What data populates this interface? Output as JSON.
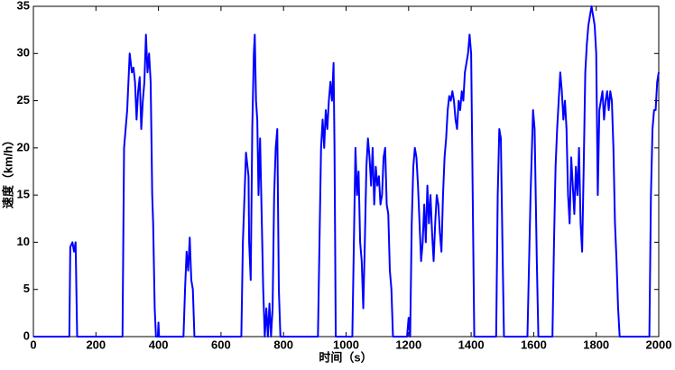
{
  "chart_data": {
    "type": "line",
    "x_label": "时间（s）",
    "y_label": "速度（km/h）",
    "series": [
      {
        "color": "#0000ff",
        "x": [
          0,
          115,
          118,
          125,
          130,
          135,
          140,
          285,
          290,
          300,
          308,
          315,
          320,
          325,
          330,
          335,
          340,
          345,
          350,
          355,
          360,
          365,
          370,
          375,
          378,
          380,
          383,
          388,
          392,
          398,
          400,
          402,
          480,
          485,
          490,
          495,
          500,
          505,
          510,
          515,
          665,
          670,
          680,
          688,
          690,
          695,
          700,
          705,
          708,
          712,
          716,
          720,
          725,
          730,
          735,
          740,
          745,
          750,
          755,
          760,
          765,
          770,
          775,
          780,
          785,
          790,
          910,
          915,
          920,
          925,
          930,
          935,
          940,
          945,
          950,
          955,
          960,
          963,
          967,
          1020,
          1025,
          1030,
          1035,
          1040,
          1045,
          1050,
          1055,
          1060,
          1065,
          1070,
          1075,
          1080,
          1085,
          1090,
          1095,
          1100,
          1105,
          1110,
          1115,
          1120,
          1125,
          1130,
          1135,
          1140,
          1145,
          1150,
          1195,
          1200,
          1205,
          1210,
          1215,
          1220,
          1225,
          1230,
          1235,
          1240,
          1245,
          1250,
          1255,
          1260,
          1265,
          1270,
          1275,
          1280,
          1285,
          1290,
          1295,
          1300,
          1305,
          1310,
          1315,
          1320,
          1325,
          1330,
          1335,
          1340,
          1345,
          1350,
          1355,
          1360,
          1365,
          1370,
          1375,
          1380,
          1385,
          1390,
          1395,
          1400,
          1405,
          1410,
          1480,
          1485,
          1490,
          1495,
          1500,
          1505,
          1580,
          1590,
          1598,
          1603,
          1610,
          1615,
          1660,
          1665,
          1670,
          1675,
          1680,
          1685,
          1690,
          1695,
          1700,
          1705,
          1710,
          1715,
          1720,
          1725,
          1730,
          1735,
          1740,
          1745,
          1750,
          1755,
          1760,
          1765,
          1770,
          1775,
          1780,
          1785,
          1790,
          1795,
          1800,
          1805,
          1810,
          1815,
          1820,
          1825,
          1830,
          1835,
          1840,
          1845,
          1850,
          1855,
          1860,
          1865,
          1870,
          1875,
          1970,
          1975,
          1980,
          1985,
          1990,
          1995,
          2000
        ],
        "values": [
          0,
          0,
          9.5,
          10,
          9,
          10,
          0,
          0,
          20,
          24,
          30,
          28,
          28.5,
          27,
          23,
          26,
          27.5,
          22,
          25,
          27,
          32,
          28,
          30,
          27,
          20,
          15,
          12,
          3,
          0,
          0,
          1.5,
          0,
          0,
          5,
          9,
          7,
          10.5,
          6,
          5,
          0,
          0,
          10,
          19.5,
          17,
          10,
          6,
          22,
          30,
          32,
          25,
          23,
          15,
          21,
          13,
          5,
          0,
          3,
          0,
          3.5,
          0,
          3,
          15,
          20,
          22,
          5,
          0,
          0,
          10,
          20,
          23,
          20,
          24,
          22,
          25,
          27,
          25,
          29,
          20,
          0,
          0,
          10,
          20,
          15,
          17.5,
          10,
          8,
          3,
          10,
          18,
          21,
          19,
          16,
          20,
          14,
          18,
          16,
          17,
          14,
          15,
          19,
          20,
          14,
          13,
          7,
          5,
          0,
          0,
          2,
          0,
          12,
          18,
          20,
          19,
          16,
          12,
          8,
          10,
          14,
          10,
          16,
          12,
          15,
          11,
          8,
          12,
          15,
          14,
          11,
          9,
          15,
          19,
          21,
          24,
          25.5,
          25,
          26,
          25,
          23,
          22,
          25,
          24,
          26,
          25,
          28,
          29,
          30,
          32,
          30,
          15,
          0,
          0,
          15,
          22,
          21,
          10,
          0,
          0,
          15,
          24,
          22,
          8,
          0,
          0,
          10,
          18,
          22,
          25,
          28,
          26,
          23,
          25,
          22,
          15,
          12,
          19,
          16,
          13,
          18,
          15,
          20,
          12,
          9,
          18,
          28,
          31,
          33,
          34,
          35,
          34,
          33,
          30,
          15,
          24,
          25,
          26,
          23,
          25,
          26,
          24,
          26,
          25,
          20,
          12,
          8,
          3,
          0,
          0,
          15,
          22,
          24,
          24,
          27,
          28
        ]
      }
    ],
    "xlim": [
      0,
      2000
    ],
    "xticks": [
      0,
      200,
      400,
      600,
      800,
      1000,
      1200,
      1400,
      1600,
      1800,
      2000
    ],
    "ylim": [
      0,
      35
    ],
    "yticks": [
      0,
      5,
      10,
      15,
      20,
      25,
      30,
      35
    ]
  }
}
